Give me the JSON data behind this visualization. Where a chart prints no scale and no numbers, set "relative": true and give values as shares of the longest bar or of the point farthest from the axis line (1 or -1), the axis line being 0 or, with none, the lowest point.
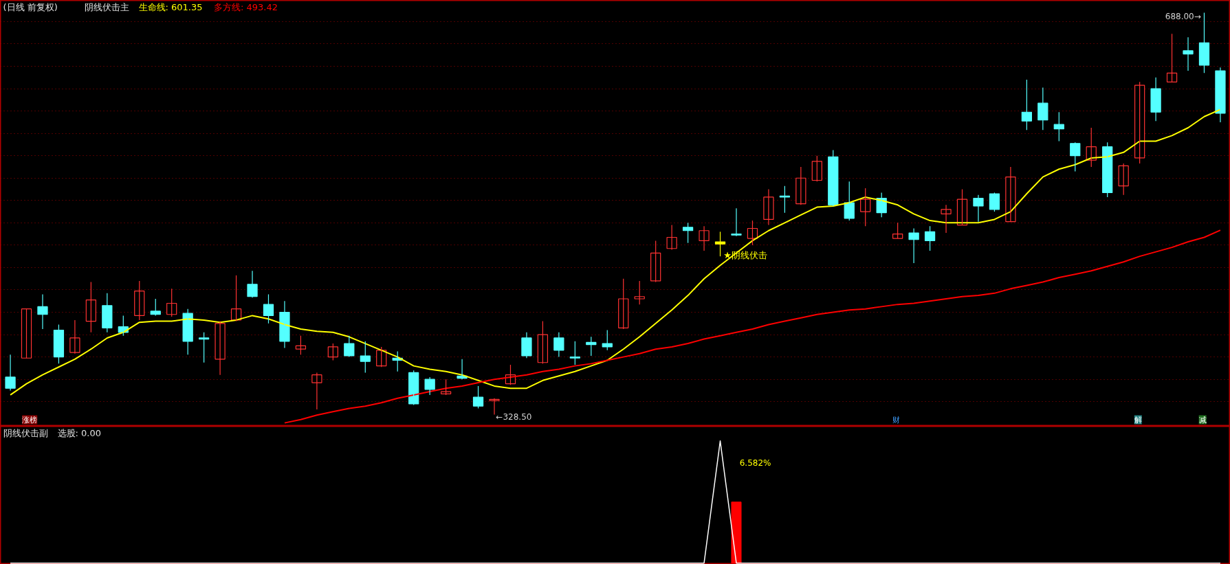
{
  "chart_data": [
    {
      "type": "candlestick",
      "title": "(日线 前复权)",
      "subtitle": "阴线伏击主",
      "grid": "y",
      "tick_labels": false,
      "yticks": [
        {
          "value": 680,
          "label": null
        },
        {
          "value": 660,
          "label": null
        },
        {
          "value": 640,
          "label": null
        },
        {
          "value": 620,
          "label": null
        },
        {
          "value": 600,
          "label": null
        },
        {
          "value": 580,
          "label": null
        },
        {
          "value": 560,
          "label": null
        },
        {
          "value": 540,
          "label": null
        },
        {
          "value": 520,
          "label": null
        },
        {
          "value": 500,
          "label": null
        },
        {
          "value": 480,
          "label": null
        },
        {
          "value": 460,
          "label": null
        },
        {
          "value": 440,
          "label": null
        },
        {
          "value": 420,
          "label": null
        },
        {
          "value": 400,
          "label": null
        },
        {
          "value": 380,
          "label": null
        },
        {
          "value": 360,
          "label": null
        },
        {
          "value": 340,
          "label": null
        }
      ],
      "categories": [
        null,
        null,
        null,
        null,
        null,
        null,
        null,
        null,
        null,
        null,
        null,
        null,
        null,
        null,
        null,
        null,
        null,
        null,
        null,
        null,
        null,
        null,
        null,
        null,
        null,
        null,
        null,
        null,
        null,
        null,
        null,
        null,
        null,
        null,
        null,
        null,
        null,
        null,
        null,
        null,
        null,
        null,
        null,
        null,
        null,
        null,
        null,
        null,
        null,
        null,
        null,
        null,
        null,
        null,
        null,
        null,
        null,
        null,
        null,
        null,
        null,
        null,
        null,
        null,
        null,
        null,
        null,
        null,
        null,
        null,
        null,
        null,
        null,
        null,
        null,
        null
      ],
      "ohlc": [
        [
          362,
          382,
          350,
          352
        ],
        [
          379,
          423,
          379,
          423
        ],
        [
          425,
          436,
          405,
          418
        ],
        [
          404,
          409,
          374,
          380
        ],
        [
          384,
          413,
          383,
          397
        ],
        [
          412,
          447,
          402,
          431
        ],
        [
          426,
          437,
          402,
          406
        ],
        [
          407,
          417,
          399,
          402
        ],
        [
          417,
          448,
          413,
          439
        ],
        [
          421,
          432,
          417,
          418
        ],
        [
          418,
          441,
          416,
          428
        ],
        [
          419,
          423,
          382,
          394
        ],
        [
          397,
          402,
          375,
          396
        ],
        [
          378,
          412,
          364,
          410
        ],
        [
          413,
          453,
          412,
          423
        ],
        [
          445,
          457,
          433,
          434
        ],
        [
          427,
          436,
          410,
          417
        ],
        [
          420,
          430,
          388,
          394
        ],
        [
          387,
          399,
          382,
          390
        ],
        [
          357,
          366,
          333,
          364
        ],
        [
          380,
          392,
          377,
          389
        ],
        [
          392,
          399,
          380,
          381
        ],
        [
          381,
          394,
          366,
          376
        ],
        [
          372,
          389,
          371,
          386
        ],
        [
          379,
          385,
          367,
          377
        ],
        [
          366,
          368,
          337,
          338
        ],
        [
          360,
          362,
          346,
          351
        ],
        [
          347,
          360,
          346,
          349
        ],
        [
          363,
          378,
          360,
          361
        ],
        [
          344,
          354,
          334,
          336
        ],
        [
          341,
          343,
          328.5,
          342
        ],
        [
          356,
          373,
          355,
          364
        ],
        [
          397,
          402,
          379,
          381
        ],
        [
          375,
          412,
          374,
          400
        ],
        [
          397,
          402,
          380,
          386
        ],
        [
          380,
          394,
          373,
          379
        ],
        [
          393,
          398,
          381,
          391
        ],
        [
          392,
          404,
          386,
          389
        ],
        [
          406,
          450,
          405,
          432
        ],
        [
          432,
          448,
          427,
          434
        ],
        [
          448,
          484,
          447,
          473
        ],
        [
          477,
          498,
          476,
          487
        ],
        [
          496,
          500,
          482,
          493
        ],
        [
          484,
          497,
          475,
          493
        ],
        [
          483,
          492,
          470,
          481
        ],
        [
          490,
          513,
          488,
          489
        ],
        [
          486,
          502,
          480,
          495
        ],
        [
          503,
          530,
          498,
          523
        ],
        [
          524,
          533,
          509,
          523
        ],
        [
          517,
          550,
          516,
          540
        ],
        [
          538,
          560,
          537,
          555
        ],
        [
          559,
          565,
          515,
          516
        ],
        [
          518,
          537,
          502,
          504
        ],
        [
          510,
          531,
          497,
          521
        ],
        [
          522,
          527,
          505,
          509
        ],
        [
          486,
          500,
          486,
          490
        ],
        [
          491,
          495,
          464,
          485
        ],
        [
          492,
          497,
          475,
          484
        ],
        [
          508,
          516,
          491,
          512
        ],
        [
          498,
          530,
          498,
          521
        ],
        [
          522,
          525,
          501,
          515
        ],
        [
          526,
          527,
          510,
          512
        ],
        [
          501,
          550,
          501,
          541
        ],
        [
          599,
          628,
          583,
          591
        ],
        [
          607,
          621,
          583,
          592
        ],
        [
          588,
          599,
          573,
          584
        ],
        [
          571,
          572,
          546,
          560
        ],
        [
          556,
          585,
          550,
          568
        ],
        [
          568,
          572,
          523,
          527
        ],
        [
          533,
          553,
          525,
          551
        ],
        [
          558,
          626,
          553,
          623
        ],
        [
          620,
          630,
          591,
          599
        ],
        [
          626,
          669,
          626,
          634
        ],
        [
          654,
          666,
          636,
          651
        ],
        [
          661,
          688,
          634,
          641
        ],
        [
          636,
          639,
          590,
          598
        ]
      ],
      "colors": [
        "#54ffff",
        "#ff3232",
        "#54ffff",
        "#54ffff",
        "#ff3232",
        "#ff3232",
        "#54ffff",
        "#54ffff",
        "#ff3232",
        "#54ffff",
        "#ff3232",
        "#54ffff",
        "#54ffff",
        "#ff3232",
        "#ff3232",
        "#54ffff",
        "#54ffff",
        "#54ffff",
        "#ff3232",
        "#ff3232",
        "#ff3232",
        "#54ffff",
        "#54ffff",
        "#ff3232",
        "#54ffff",
        "#54ffff",
        "#54ffff",
        "#ff3232",
        "#54ffff",
        "#54ffff",
        "#ff3232",
        "#ff3232",
        "#54ffff",
        "#ff3232",
        "#54ffff",
        "#54ffff",
        "#54ffff",
        "#54ffff",
        "#ff3232",
        "#ff3232",
        "#ff3232",
        "#ff3232",
        "#54ffff",
        "#ff3232",
        "#ffff00",
        "#54ffff",
        "#ff3232",
        "#ff3232",
        "#54ffff",
        "#ff3232",
        "#ff3232",
        "#54ffff",
        "#54ffff",
        "#ff3232",
        "#54ffff",
        "#ff3232",
        "#54ffff",
        "#54ffff",
        "#ff3232",
        "#ff3232",
        "#54ffff",
        "#54ffff",
        "#ff3232",
        "#54ffff",
        "#54ffff",
        "#54ffff",
        "#54ffff",
        "#ff3232",
        "#54ffff",
        "#ff3232",
        "#ff3232",
        "#54ffff",
        "#ff3232",
        "#54ffff",
        "#54ffff",
        "#54ffff"
      ],
      "series": [
        {
          "name": "生命线: 601.35",
          "type": "line",
          "color": "#ffff00",
          "values": [
            346,
            356,
            364,
            371,
            378,
            387,
            397,
            402,
            411,
            412,
            412,
            414,
            413,
            411,
            413,
            417,
            414,
            409,
            405,
            403,
            402,
            398,
            392,
            386,
            380,
            372,
            369,
            367,
            364,
            359,
            354,
            352,
            352,
            359,
            363,
            367,
            372,
            377,
            387,
            398,
            410,
            422,
            435,
            450,
            462,
            473,
            484,
            493,
            500,
            507,
            514,
            515,
            518,
            523,
            520,
            516,
            508,
            502,
            500,
            500,
            500,
            503,
            510,
            526,
            541,
            548,
            552,
            558,
            559,
            563,
            573,
            573,
            578,
            585,
            595,
            601.35
          ]
        },
        {
          "name": "多方线: 493.42",
          "type": "line",
          "color": "#ff0000",
          "values": [
            null,
            null,
            null,
            null,
            null,
            null,
            null,
            null,
            null,
            null,
            null,
            null,
            null,
            null,
            null,
            null,
            null,
            321,
            324,
            328,
            331,
            334,
            336,
            339,
            343,
            346,
            349,
            352,
            354,
            357,
            360,
            362,
            364,
            367,
            369,
            372,
            374,
            377,
            380,
            383,
            387,
            389,
            392,
            396,
            399,
            402,
            405,
            409,
            412,
            415,
            418,
            420,
            422,
            423,
            425,
            427,
            428,
            430,
            432,
            434,
            435,
            437,
            441,
            444,
            447,
            451,
            454,
            457,
            461,
            465,
            470,
            474,
            478,
            483,
            487,
            493.42
          ]
        }
      ],
      "annotations": [
        "688.00→",
        "←328.50",
        "★阴线伏击",
        "涨榜",
        "财",
        "解",
        "减"
      ]
    },
    {
      "type": "line",
      "title": "阴线伏击副",
      "subtitle": "选股: 0.00",
      "relative": true,
      "categories": [
        null,
        null,
        null,
        null,
        null,
        null,
        null,
        null,
        null,
        null,
        null,
        null,
        null,
        null,
        null,
        null,
        null,
        null,
        null,
        null,
        null,
        null,
        null,
        null,
        null,
        null,
        null,
        null,
        null,
        null,
        null,
        null,
        null,
        null,
        null,
        null,
        null,
        null,
        null,
        null,
        null,
        null,
        null,
        null,
        null,
        null,
        null,
        null,
        null,
        null,
        null,
        null,
        null,
        null,
        null,
        null,
        null,
        null,
        null,
        null,
        null,
        null,
        null,
        null,
        null,
        null,
        null,
        null,
        null,
        null,
        null,
        null,
        null,
        null,
        null,
        null
      ],
      "series": [
        {
          "type": "line",
          "color": "#ffffff",
          "values": [
            0,
            0,
            0,
            0,
            0,
            0,
            0,
            0,
            0,
            0,
            0,
            0,
            0,
            0,
            0,
            0,
            0,
            0,
            0,
            0,
            0,
            0,
            0,
            0,
            0,
            0,
            0,
            0,
            0,
            0,
            0,
            0,
            0,
            0,
            0,
            0,
            0,
            0,
            0,
            0,
            0,
            0,
            0,
            0,
            1,
            0,
            0,
            0,
            0,
            0,
            0,
            0,
            0,
            0,
            0,
            0,
            0,
            0,
            0,
            0,
            0,
            0,
            0,
            0,
            0,
            0,
            0,
            0,
            0,
            0,
            0,
            0,
            0,
            0,
            0,
            0
          ]
        },
        {
          "type": "bar",
          "color": "#ff0000",
          "values": [
            null,
            null,
            null,
            null,
            null,
            null,
            null,
            null,
            null,
            null,
            null,
            null,
            null,
            null,
            null,
            null,
            null,
            null,
            null,
            null,
            null,
            null,
            null,
            null,
            null,
            null,
            null,
            null,
            null,
            null,
            null,
            null,
            null,
            null,
            null,
            null,
            null,
            null,
            null,
            null,
            null,
            null,
            null,
            null,
            null,
            0.5,
            null,
            null,
            null,
            null,
            null,
            null,
            null,
            null,
            null,
            null,
            null,
            null,
            null,
            null,
            null,
            null,
            null,
            null,
            null,
            null,
            null,
            null,
            null,
            null,
            null,
            null,
            null,
            null,
            null,
            null
          ]
        }
      ],
      "annotations": [
        "6.582%"
      ]
    }
  ]
}
